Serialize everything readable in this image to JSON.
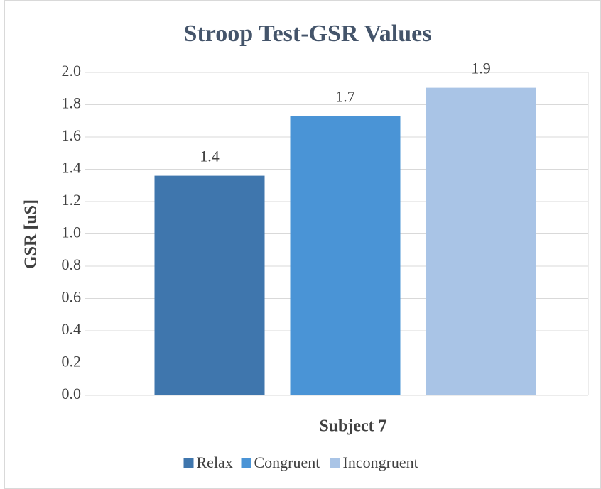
{
  "chart_data": {
    "type": "bar",
    "title": "Stroop Test-GSR Values",
    "x_label": "Subject 7",
    "y_label": "GSR [uS]",
    "categories": [
      "Subject 7"
    ],
    "series": [
      {
        "name": "Relax",
        "color": "#3f76ad",
        "values": [
          1.36
        ],
        "value_labels": [
          "1.4"
        ]
      },
      {
        "name": "Congruent",
        "color": "#4a94d6",
        "values": [
          1.73
        ],
        "value_labels": [
          "1.7"
        ]
      },
      {
        "name": "Incongruent",
        "color": "#a9c4e6",
        "values": [
          1.905
        ],
        "value_labels": [
          "1.9"
        ]
      }
    ],
    "ylim": [
      0,
      2
    ],
    "yticks": [
      {
        "value": 0,
        "label": "0.0"
      },
      0.2,
      0.4,
      0.6,
      0.8,
      {
        "value": 1,
        "label": "1.0"
      },
      1.2,
      1.4,
      1.6,
      1.8,
      {
        "value": 2,
        "label": "2.0"
      }
    ],
    "grid": true,
    "legend": "bottom"
  }
}
